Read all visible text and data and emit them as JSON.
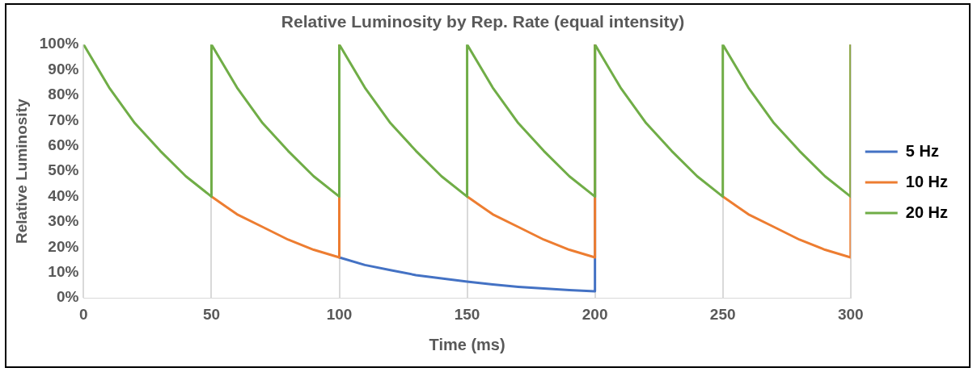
{
  "chart_data": {
    "type": "line",
    "title": "Relative Luminosity by Rep. Rate (equal intensity)",
    "xlabel": "Time (ms)",
    "ylabel": "Relative Luminosity",
    "xlim": [
      0,
      300
    ],
    "xticks": [
      0,
      50,
      100,
      150,
      200,
      250,
      300
    ],
    "ylim": [
      0,
      100
    ],
    "yticks": [
      {
        "value": 0,
        "label": "0%"
      },
      {
        "value": 10,
        "label": "10%"
      },
      {
        "value": 20,
        "label": "20%"
      },
      {
        "value": 30,
        "label": "30%"
      },
      {
        "value": 40,
        "label": "40%"
      },
      {
        "value": 50,
        "label": "50%"
      },
      {
        "value": 60,
        "label": "60%"
      },
      {
        "value": 70,
        "label": "70%"
      },
      {
        "value": 80,
        "label": "80%"
      },
      {
        "value": 90,
        "label": "90%"
      },
      {
        "value": 100,
        "label": "100%"
      }
    ],
    "grid": "x",
    "legend": "right",
    "marker": "none",
    "line_style": "solid",
    "series": [
      {
        "name": "5 Hz",
        "color": "#4472c4",
        "x": [
          100,
          110,
          120,
          130,
          140,
          150,
          160,
          170,
          180,
          190,
          200,
          200
        ],
        "values": [
          16,
          13,
          11,
          9,
          7.7,
          6.4,
          5.3,
          4.4,
          3.7,
          3.1,
          2.6,
          100
        ]
      },
      {
        "name": "10 Hz",
        "color": "#ed7d31",
        "x": [
          50,
          60,
          70,
          80,
          90,
          100,
          100,
          110,
          120,
          130,
          140,
          150,
          160,
          170,
          180,
          190,
          200,
          200,
          210,
          220,
          230,
          240,
          250,
          260,
          270,
          280,
          290,
          300,
          300
        ],
        "values": [
          40,
          33,
          28,
          23,
          19,
          16,
          100,
          null,
          null,
          null,
          null,
          40,
          33,
          28,
          23,
          19,
          16,
          100,
          null,
          null,
          null,
          null,
          40,
          33,
          28,
          23,
          19,
          16,
          100
        ]
      },
      {
        "name": "20 Hz",
        "color": "#70ad47",
        "x": [
          0,
          10,
          20,
          30,
          40,
          50,
          50,
          60,
          70,
          80,
          90,
          100,
          100,
          110,
          120,
          130,
          140,
          150,
          150,
          160,
          170,
          180,
          190,
          200,
          200,
          210,
          220,
          230,
          240,
          250,
          250,
          260,
          270,
          280,
          290,
          300,
          300
        ],
        "values": [
          100,
          83,
          69,
          58,
          48,
          40,
          100,
          83,
          69,
          58,
          48,
          40,
          100,
          83,
          69,
          58,
          48,
          40,
          100,
          83,
          69,
          58,
          48,
          40,
          100,
          83,
          69,
          58,
          48,
          40,
          100,
          83,
          69,
          58,
          48,
          40,
          100
        ]
      }
    ]
  }
}
